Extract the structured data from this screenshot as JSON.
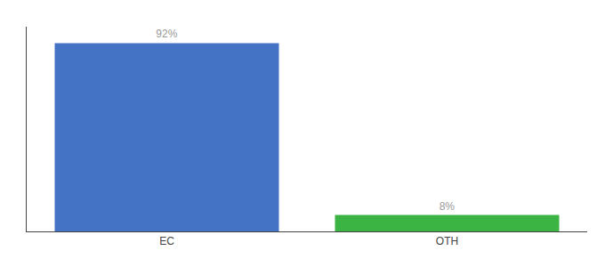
{
  "chart_data": {
    "type": "bar",
    "categories": [
      "EC",
      "OTH"
    ],
    "values": [
      92,
      8
    ],
    "value_labels": [
      "92%",
      "8%"
    ],
    "colors": [
      "#4472c4",
      "#3cb444"
    ],
    "ylim": [
      0,
      100
    ],
    "data_labels": true,
    "tick_labels": "x",
    "grid": false
  }
}
